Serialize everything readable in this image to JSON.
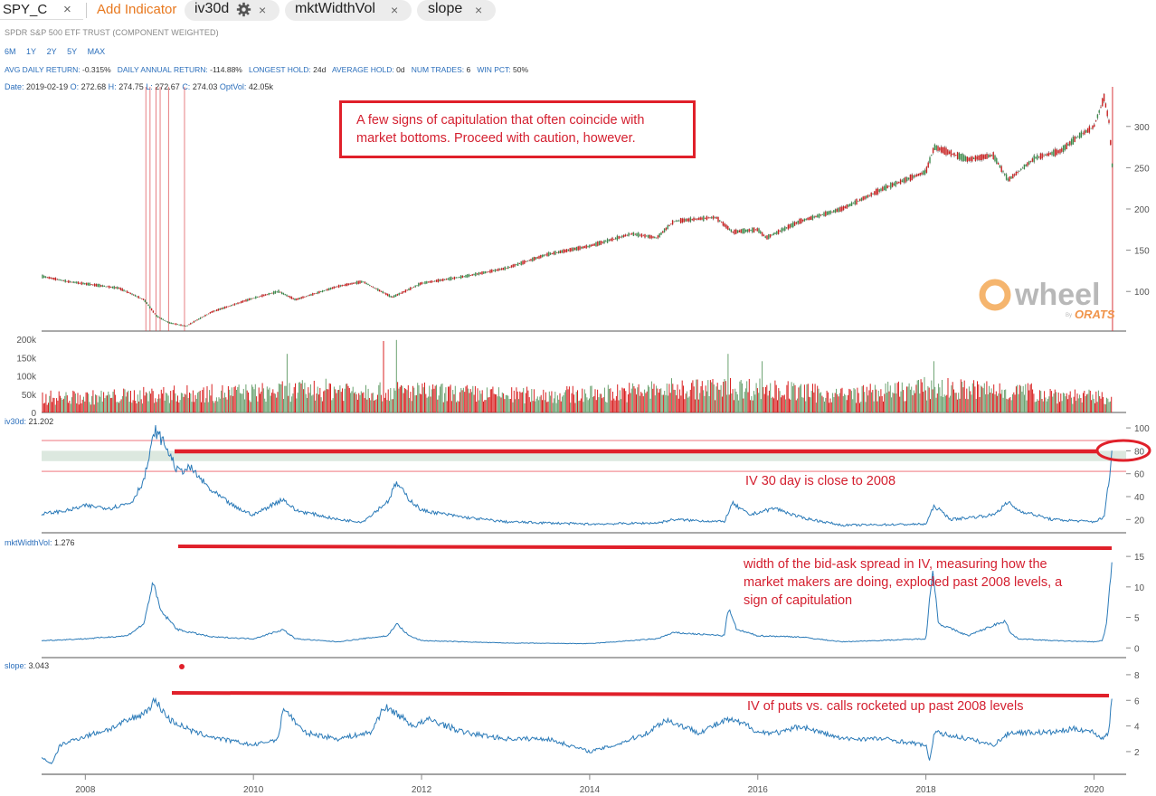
{
  "header": {
    "symbol": "SPY_C",
    "close_glyph": "×",
    "add_indicator": "Add Indicator",
    "tabs": [
      {
        "label": "iv30d",
        "has_gear": true
      },
      {
        "label": "mktWidthVol",
        "has_gear": false
      },
      {
        "label": "slope",
        "has_gear": false
      }
    ]
  },
  "subtitle": "SPDR S&P 500 ETF TRUST (COMPONENT WEIGHTED)",
  "ranges": [
    "6M",
    "1Y",
    "2Y",
    "5Y",
    "MAX"
  ],
  "stats": [
    {
      "label": "AVG DAILY RETURN:",
      "value": "-0.315%"
    },
    {
      "label": "DAILY ANNUAL RETURN:",
      "value": "-114.88%"
    },
    {
      "label": "LONGEST HOLD:",
      "value": "24d"
    },
    {
      "label": "AVERAGE HOLD:",
      "value": "0d"
    },
    {
      "label": "NUM TRADES:",
      "value": "6"
    },
    {
      "label": "WIN PCT:",
      "value": "50%"
    }
  ],
  "ohlc": {
    "date_label": "Date:",
    "date": "2019-02-19",
    "o_label": "O:",
    "o": "272.68",
    "h_label": "H:",
    "h": "274.75",
    "l_label": "L:",
    "l": "272.67",
    "c_label": "C:",
    "c": "274.03",
    "optvol_label": "OptVol:",
    "optvol": "42.05k"
  },
  "panels": {
    "iv30d": {
      "label": "iv30d:",
      "value": "21.202"
    },
    "mktWidthVol": {
      "label": "mktWidthVol:",
      "value": "1.276"
    },
    "slope": {
      "label": "slope:",
      "value": "3.043"
    }
  },
  "annotations": {
    "box": [
      "A few signs of capitulation that often coincide with",
      "market bottoms. Proceed with caution, however."
    ],
    "iv": [
      "IV 30 day is close to 2008"
    ],
    "width": [
      "width of the bid-ask spread in IV, measuring how the",
      "market makers are doing, exploded past 2008 levels, a",
      "sign of capitulation"
    ],
    "slope": [
      "IV of puts vs. calls rocketed up past 2008 levels"
    ]
  },
  "watermark": {
    "word": "wheel",
    "by": "By",
    "brand": "ORATS"
  },
  "colors": {
    "accent": "#e8781e",
    "link": "#2a6ebb",
    "line": "#2a7ab8",
    "up": "#6aa16f",
    "down": "#d82020",
    "annotation": "#e0202a"
  },
  "chart_data": [
    {
      "type": "line",
      "name": "SPY_C price",
      "x": [
        2007.5,
        2007.8,
        2008.1,
        2008.4,
        2008.7,
        2008.85,
        2009.0,
        2009.2,
        2009.5,
        2010.0,
        2010.3,
        2010.5,
        2011.0,
        2011.3,
        2011.65,
        2011.8,
        2012.0,
        2012.5,
        2013.0,
        2013.5,
        2014.0,
        2014.5,
        2014.8,
        2015.0,
        2015.5,
        2015.7,
        2016.0,
        2016.1,
        2016.5,
        2017.0,
        2017.5,
        2018.0,
        2018.1,
        2018.5,
        2018.8,
        2018.98,
        2019.3,
        2019.6,
        2019.8,
        2020.0,
        2020.12,
        2020.18,
        2020.22
      ],
      "y": [
        118,
        112,
        108,
        104,
        90,
        70,
        62,
        58,
        75,
        92,
        100,
        90,
        106,
        112,
        93,
        100,
        110,
        118,
        128,
        145,
        155,
        170,
        165,
        185,
        190,
        172,
        175,
        165,
        185,
        200,
        225,
        245,
        275,
        260,
        265,
        235,
        262,
        270,
        287,
        300,
        335,
        305,
        248
      ],
      "ylim": [
        52,
        348
      ],
      "xlim": [
        2007.48,
        2020.35
      ],
      "y_ticks": [
        100,
        150,
        200,
        250,
        300
      ],
      "signal_dates": [
        2008.72,
        2008.77,
        2008.84,
        2008.89,
        2008.99,
        2009.18
      ],
      "latest_signal": 2020.22
    },
    {
      "type": "bar",
      "name": "Option volume",
      "ylim": [
        0,
        200000
      ],
      "y_ticks": [
        "0",
        "50k",
        "100k",
        "150k",
        "200k"
      ],
      "typical": [
        {
          "x": 2008.0,
          "y": 45000
        },
        {
          "x": 2009.0,
          "y": 55000
        },
        {
          "x": 2010.0,
          "y": 60000
        },
        {
          "x": 2011.0,
          "y": 70000
        },
        {
          "x": 2012.0,
          "y": 62000
        },
        {
          "x": 2013.0,
          "y": 52000
        },
        {
          "x": 2014.0,
          "y": 55000
        },
        {
          "x": 2015.0,
          "y": 70000
        },
        {
          "x": 2016.0,
          "y": 72000
        },
        {
          "x": 2017.0,
          "y": 52000
        },
        {
          "x": 2018.0,
          "y": 72000
        },
        {
          "x": 2019.0,
          "y": 65000
        },
        {
          "x": 2020.0,
          "y": 45000
        }
      ],
      "peaks": [
        {
          "x": 2011.55,
          "y": 195000
        },
        {
          "x": 2011.7,
          "y": 198000
        },
        {
          "x": 2010.4,
          "y": 160000
        },
        {
          "x": 2015.65,
          "y": 160000
        },
        {
          "x": 2016.05,
          "y": 140000
        },
        {
          "x": 2018.1,
          "y": 140000
        }
      ]
    },
    {
      "type": "line",
      "name": "iv30d",
      "x": [
        2007.5,
        2007.8,
        2008.0,
        2008.3,
        2008.55,
        2008.7,
        2008.83,
        2008.95,
        2009.1,
        2009.25,
        2009.5,
        2009.8,
        2010.0,
        2010.35,
        2010.5,
        2010.7,
        2011.0,
        2011.3,
        2011.6,
        2011.7,
        2011.85,
        2012.0,
        2012.5,
        2013.0,
        2014.0,
        2014.8,
        2015.0,
        2015.6,
        2015.7,
        2015.9,
        2016.1,
        2016.2,
        2016.5,
        2017.0,
        2018.0,
        2018.1,
        2018.3,
        2018.8,
        2018.98,
        2019.1,
        2019.5,
        2020.0,
        2020.12,
        2020.17,
        2020.22
      ],
      "y": [
        25,
        28,
        32,
        30,
        35,
        55,
        98,
        85,
        62,
        65,
        45,
        30,
        24,
        38,
        28,
        25,
        20,
        18,
        36,
        52,
        38,
        28,
        22,
        18,
        16,
        17,
        20,
        18,
        34,
        24,
        28,
        30,
        22,
        15,
        16,
        32,
        20,
        24,
        35,
        28,
        20,
        18,
        22,
        50,
        82
      ],
      "ylim": [
        10,
        104
      ],
      "y_ticks": [
        20,
        40,
        60,
        80,
        100
      ],
      "band_lines": [
        89,
        62
      ],
      "shaded_band": [
        71,
        80
      ]
    },
    {
      "type": "line",
      "name": "mktWidthVol",
      "x": [
        2007.5,
        2008.0,
        2008.5,
        2008.7,
        2008.8,
        2008.9,
        2009.1,
        2009.5,
        2010.0,
        2010.35,
        2010.5,
        2011.0,
        2011.6,
        2011.7,
        2011.85,
        2012.0,
        2013.0,
        2014.0,
        2014.8,
        2015.0,
        2015.6,
        2015.65,
        2015.75,
        2016.0,
        2016.5,
        2017.0,
        2018.0,
        2018.08,
        2018.15,
        2018.5,
        2018.95,
        2019.0,
        2019.1,
        2019.5,
        2020.0,
        2020.1,
        2020.15,
        2020.2,
        2020.22
      ],
      "y": [
        1.2,
        1.5,
        2.0,
        4.0,
        10.8,
        6.0,
        3.0,
        1.8,
        1.5,
        3.0,
        1.5,
        1.0,
        2.0,
        4.0,
        2.0,
        1.2,
        0.8,
        0.7,
        1.5,
        2.5,
        2.0,
        6.5,
        3.0,
        2.0,
        1.8,
        1.0,
        1.5,
        13.0,
        4.0,
        2.0,
        4.5,
        2.5,
        1.5,
        1.2,
        1.0,
        1.2,
        4.0,
        12.0,
        15.5
      ],
      "ylim": [
        -0.7,
        16.8
      ],
      "y_ticks": [
        0,
        5,
        10,
        15
      ]
    },
    {
      "type": "line",
      "name": "slope",
      "x": [
        2007.5,
        2007.6,
        2007.7,
        2007.9,
        2008.3,
        2008.7,
        2008.83,
        2009.0,
        2009.3,
        2009.6,
        2010.0,
        2010.3,
        2010.35,
        2010.6,
        2011.0,
        2011.4,
        2011.55,
        2011.7,
        2011.9,
        2012.1,
        2012.5,
        2013.0,
        2013.5,
        2014.0,
        2014.3,
        2014.7,
        2014.9,
        2015.3,
        2015.65,
        2015.9,
        2016.0,
        2016.3,
        2016.5,
        2017.0,
        2017.5,
        2018.0,
        2018.04,
        2018.1,
        2018.5,
        2018.8,
        2019.0,
        2019.5,
        2019.8,
        2020.0,
        2020.1,
        2020.17,
        2020.22
      ],
      "y": [
        1.5,
        1.0,
        2.5,
        3.0,
        3.8,
        5.0,
        6.0,
        4.5,
        3.5,
        3.0,
        2.5,
        3.0,
        5.5,
        3.5,
        3.0,
        3.5,
        5.5,
        5.0,
        4.0,
        4.5,
        3.5,
        3.0,
        3.0,
        2.0,
        2.5,
        3.5,
        4.5,
        3.5,
        4.5,
        4.0,
        3.5,
        3.5,
        4.0,
        3.0,
        3.0,
        2.5,
        1.2,
        3.5,
        3.0,
        2.5,
        3.5,
        3.5,
        3.8,
        3.5,
        3.0,
        3.5,
        6.3
      ],
      "ylim": [
        0.3,
        8.7
      ],
      "y_ticks": [
        2,
        4,
        6,
        8
      ]
    }
  ],
  "x_axis": {
    "ticks": [
      "2008",
      "2010",
      "2012",
      "2014",
      "2016",
      "2018",
      "2020"
    ],
    "tick_years": [
      2008,
      2010,
      2012,
      2014,
      2016,
      2018,
      2020
    ]
  }
}
